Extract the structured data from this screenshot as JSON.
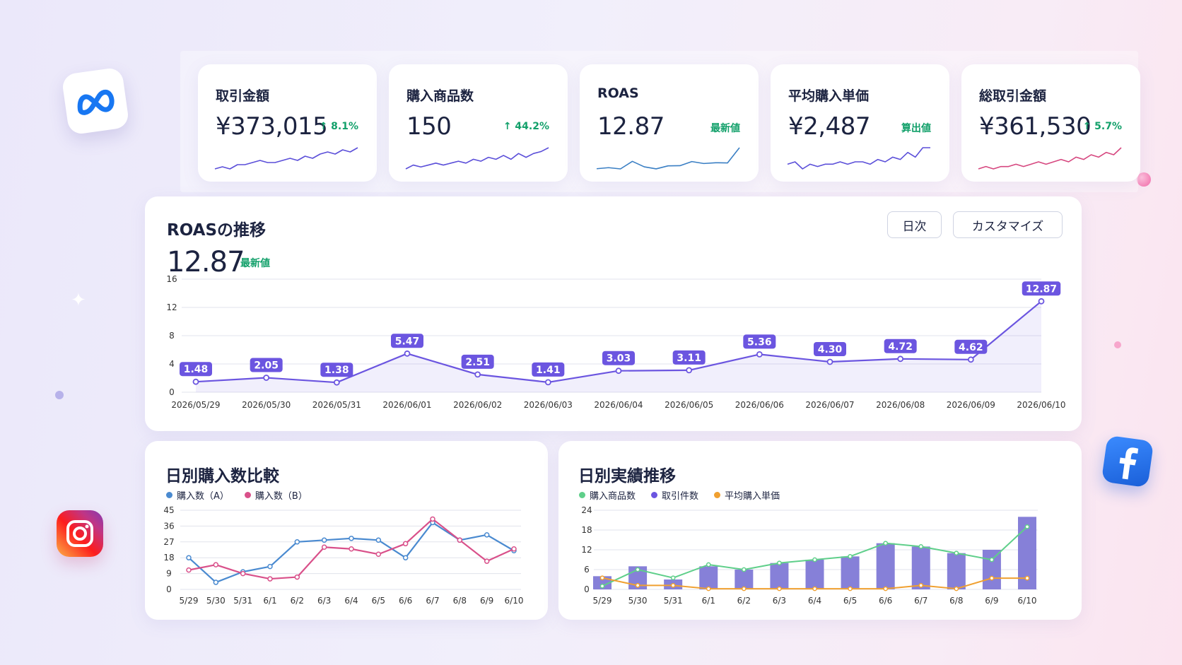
{
  "kpis": [
    {
      "label": "取引金額",
      "value": "¥373,015",
      "badge": "↑ 8.1%",
      "color": "#5b4fd9",
      "spark": [
        3,
        4,
        3,
        5,
        5,
        6,
        7,
        6,
        6,
        7,
        8,
        7,
        9,
        8,
        10,
        11,
        10,
        12,
        11,
        13
      ]
    },
    {
      "label": "購入商品数",
      "value": "150",
      "badge": "↑ 44.2%",
      "color": "#5b4fd9",
      "spark": [
        3,
        5,
        4,
        5,
        6,
        5,
        6,
        7,
        6,
        8,
        7,
        9,
        8,
        10,
        8,
        11,
        9,
        11,
        12,
        14
      ]
    },
    {
      "label": "ROAS",
      "value": "12.87",
      "badge": "最新値",
      "color": "#3a7fc4",
      "spark": [
        1.48,
        2.05,
        1.38,
        5.47,
        2.51,
        1.41,
        3.03,
        3.11,
        5.36,
        4.3,
        4.72,
        4.62,
        12.87
      ]
    },
    {
      "label": "平均購入単価",
      "value": "¥2,487",
      "badge": "算出値",
      "color": "#5b4fd9",
      "spark": [
        6,
        7,
        4,
        6,
        5,
        6,
        6,
        7,
        6,
        7,
        7,
        6,
        8,
        7,
        9,
        8,
        11,
        9,
        13,
        13
      ]
    },
    {
      "label": "総取引金額",
      "value": "¥361,530",
      "badge": "↑ 5.7%",
      "color": "#d6477f",
      "spark": [
        3,
        4,
        3,
        4,
        4,
        5,
        4,
        5,
        6,
        5,
        6,
        7,
        6,
        8,
        7,
        9,
        8,
        10,
        9,
        12
      ]
    }
  ],
  "roas_panel": {
    "title": "ROASの推移",
    "latest_value": "12.87",
    "latest_badge": "最新値",
    "btn_daily": "日次",
    "btn_customize": "カスタマイズ"
  },
  "purchase_panel": {
    "title": "日別購入数比較",
    "legend": [
      {
        "name": "購入数（A）",
        "color": "#4a8ad0"
      },
      {
        "name": "購入数（B）",
        "color": "#d9508a"
      }
    ]
  },
  "perf_panel": {
    "title": "日別実績推移",
    "legend": [
      {
        "name": "購入商品数",
        "color": "#5fcf8a"
      },
      {
        "name": "取引件数",
        "color": "#6b55e0"
      },
      {
        "name": "平均購入単価",
        "color": "#f0a030"
      }
    ]
  },
  "chart_data": [
    {
      "type": "line",
      "name": "roas",
      "categories": [
        "2026/05/29",
        "2026/05/30",
        "2026/05/31",
        "2026/06/01",
        "2026/06/02",
        "2026/06/03",
        "2026/06/04",
        "2026/06/05",
        "2026/06/06",
        "2026/06/07",
        "2026/06/08",
        "2026/06/09",
        "2026/06/10"
      ],
      "values": [
        1.48,
        2.05,
        1.38,
        5.47,
        2.51,
        1.41,
        3.03,
        3.11,
        5.36,
        4.3,
        4.72,
        4.62,
        12.87
      ],
      "data_labels": [
        "1.48",
        "2.05",
        "1.38",
        "5.47",
        "2.51",
        "1.41",
        "3.03",
        "3.11",
        "5.36",
        "4.30",
        "4.72",
        "4.62",
        "12.87"
      ],
      "ylim": [
        0,
        16
      ],
      "yticks": [
        "0",
        "4",
        "8",
        "12",
        "16"
      ],
      "grid": true,
      "color": "#6b55e0"
    },
    {
      "type": "line",
      "name": "purchase_compare",
      "categories": [
        "5/29",
        "5/30",
        "5/31",
        "6/1",
        "6/2",
        "6/3",
        "6/4",
        "6/5",
        "6/6",
        "6/7",
        "6/8",
        "6/9",
        "6/10"
      ],
      "series": [
        {
          "name": "購入数（A）",
          "values": [
            18,
            4,
            10,
            13,
            27,
            28,
            29,
            28,
            18,
            38,
            28,
            31,
            22
          ],
          "color": "#4a8ad0"
        },
        {
          "name": "購入数（B）",
          "values": [
            11,
            14,
            9,
            6,
            7,
            24,
            23,
            20,
            26,
            40,
            28,
            16,
            23
          ],
          "color": "#d9508a"
        }
      ],
      "ylim": [
        0,
        45
      ],
      "yticks": [
        "0",
        "9",
        "18",
        "27",
        "36",
        "45"
      ],
      "grid": true,
      "legend": "top-left"
    },
    {
      "type": "bar",
      "name": "daily_performance",
      "categories": [
        "5/29",
        "5/30",
        "5/31",
        "6/1",
        "6/2",
        "6/3",
        "6/4",
        "6/5",
        "6/6",
        "6/7",
        "6/8",
        "6/9",
        "6/10"
      ],
      "series": [
        {
          "name": "取引件数",
          "type": "bar",
          "values": [
            4,
            7,
            3,
            7,
            6,
            8,
            9,
            10,
            14,
            13,
            11,
            12,
            22
          ],
          "color": "#8680d8"
        },
        {
          "name": "購入商品数",
          "type": "line",
          "values": [
            1,
            6,
            3.5,
            7.5,
            6,
            8,
            9,
            10,
            14,
            13,
            11,
            9,
            19
          ],
          "color": "#5fcf8a"
        },
        {
          "name": "平均購入単価",
          "type": "line",
          "values": [
            3.5,
            1.2,
            1.2,
            0.2,
            0.2,
            0.2,
            0.2,
            0.2,
            0.2,
            1.2,
            0.2,
            3.4,
            3.4
          ],
          "color": "#f0a030"
        }
      ],
      "ylim": [
        0,
        24
      ],
      "yticks": [
        "0",
        "6",
        "12",
        "18",
        "24"
      ],
      "grid": true,
      "legend": "top-left"
    }
  ]
}
